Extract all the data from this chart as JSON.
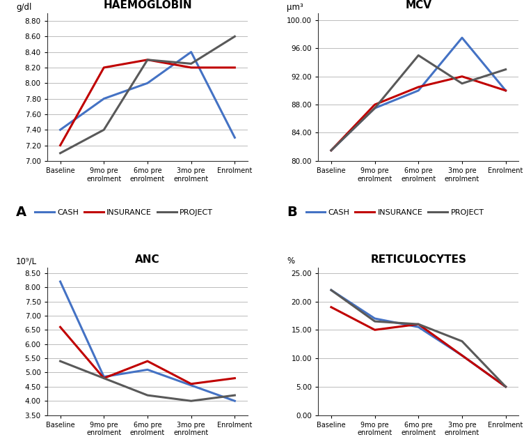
{
  "x_labels": [
    "Baseline",
    "9mo pre\nenrolment",
    "6mo pre\nenrolment",
    "3mo pre\nenrolment",
    "Enrolment"
  ],
  "hgb": {
    "title": "HAEMOGLOBIN",
    "ylabel": "g/dl",
    "ylim": [
      7.0,
      8.9
    ],
    "yticks": [
      7.0,
      7.2,
      7.4,
      7.6,
      7.8,
      8.0,
      8.2,
      8.4,
      8.6,
      8.8
    ],
    "cash": [
      7.4,
      7.8,
      8.0,
      8.4,
      7.3
    ],
    "insurance": [
      7.2,
      8.2,
      8.3,
      8.2,
      8.2
    ],
    "project": [
      7.1,
      7.4,
      8.3,
      8.25,
      8.6
    ]
  },
  "mcv": {
    "title": "MCV",
    "ylabel": "μm³",
    "ylim": [
      80.0,
      101.0
    ],
    "yticks": [
      80.0,
      84.0,
      88.0,
      92.0,
      96.0,
      100.0
    ],
    "cash": [
      81.5,
      87.5,
      90.0,
      97.5,
      90.0
    ],
    "insurance": [
      81.5,
      88.0,
      90.5,
      92.0,
      90.0
    ],
    "project": [
      81.5,
      87.5,
      95.0,
      91.0,
      93.0
    ]
  },
  "anc": {
    "title": "ANC",
    "ylabel": "10⁹/L",
    "ylim": [
      3.5,
      8.7
    ],
    "yticks": [
      3.5,
      4.0,
      4.5,
      5.0,
      5.5,
      6.0,
      6.5,
      7.0,
      7.5,
      8.0,
      8.5
    ],
    "cash": [
      8.2,
      4.85,
      5.1,
      4.55,
      4.0
    ],
    "insurance": [
      6.6,
      4.8,
      5.4,
      4.6,
      4.8
    ],
    "project": [
      5.4,
      4.8,
      4.2,
      4.0,
      4.2
    ]
  },
  "retic": {
    "title": "RETICULOCYTES",
    "ylabel": "%",
    "ylim": [
      0.0,
      26.0
    ],
    "yticks": [
      0.0,
      5.0,
      10.0,
      15.0,
      20.0,
      25.0
    ],
    "cash": [
      22.0,
      17.0,
      15.5,
      10.5,
      5.0
    ],
    "insurance": [
      19.0,
      15.0,
      16.0,
      10.5,
      5.0
    ],
    "project": [
      22.0,
      16.5,
      16.0,
      13.0,
      5.0
    ]
  },
  "colors": {
    "cash": "#4472C4",
    "insurance": "#C00000",
    "project": "#595959"
  },
  "legend_labels": [
    "CASH",
    "INSURANCE",
    "PROJECT"
  ]
}
